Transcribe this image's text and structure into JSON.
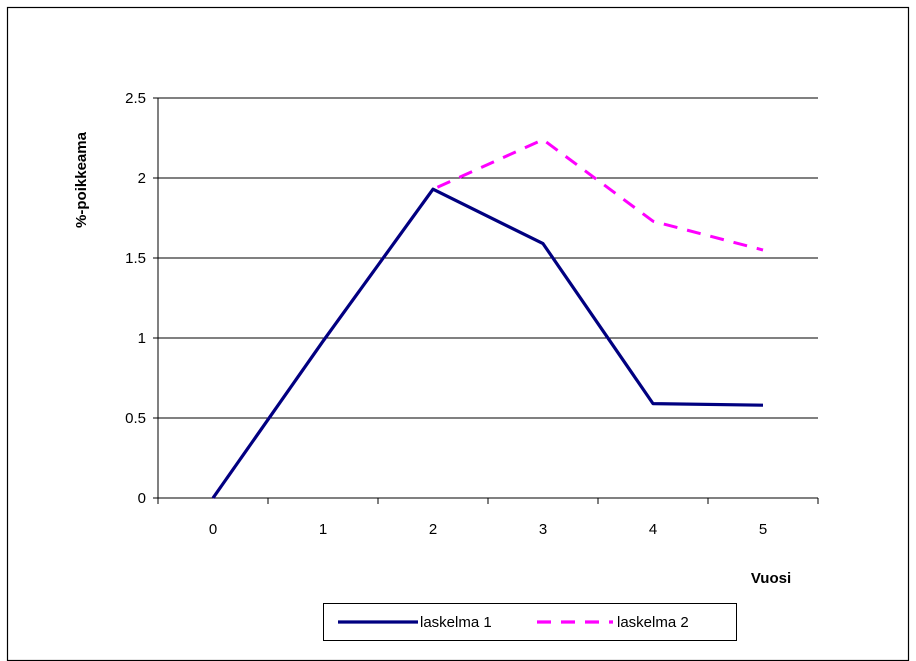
{
  "chart_data": {
    "type": "line",
    "title": "",
    "xlabel": "Vuosi",
    "ylabel": "%-poikkeama",
    "x": [
      0,
      1,
      2,
      3,
      4,
      5
    ],
    "x_tick_labels": [
      "0",
      "1",
      "2",
      "3",
      "4",
      "5"
    ],
    "ylim": [
      0,
      2.5
    ],
    "y_ticks": [
      0,
      0.5,
      1,
      1.5,
      2,
      2.5
    ],
    "y_tick_labels": [
      "0",
      "0.5",
      "1",
      "1.5",
      "2",
      "2.5"
    ],
    "grid": "horizontal",
    "legend_position": "bottom",
    "series": [
      {
        "name": "laskelma 1",
        "values": [
          0,
          0.98,
          1.93,
          1.59,
          0.59,
          0.58
        ],
        "color": "#000080",
        "style": "solid"
      },
      {
        "name": "laskelma 2",
        "values": [
          0,
          0.98,
          1.93,
          2.24,
          1.73,
          1.55
        ],
        "color": "#ff00ff",
        "style": "dashed"
      }
    ]
  }
}
